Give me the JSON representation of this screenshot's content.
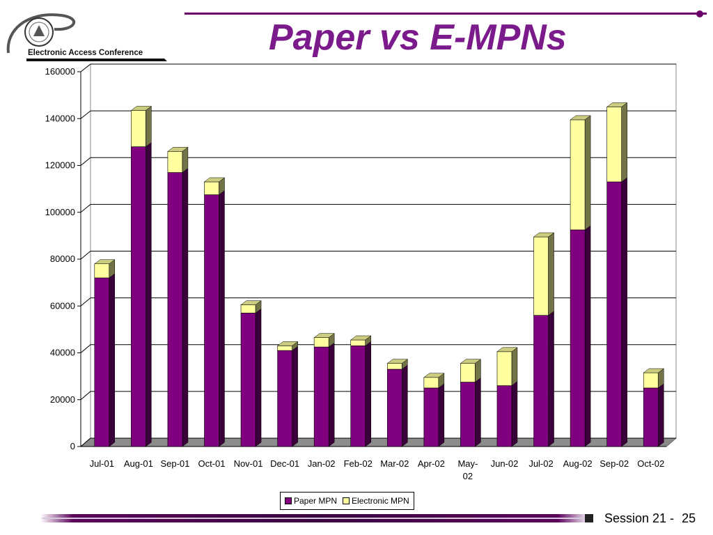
{
  "slide": {
    "title": "Paper vs E-MPNs",
    "logo_text": "Electronic Access Conference",
    "session_label": "Session 21 -",
    "page_number": "25",
    "colors": {
      "title": "#7b1a8a",
      "accent": "#6b006b"
    }
  },
  "chart_data": {
    "type": "bar",
    "stacked": true,
    "three_d": true,
    "categories": [
      "Jul-01",
      "Aug-01",
      "Sep-01",
      "Oct-01",
      "Nov-01",
      "Dec-01",
      "Jan-02",
      "Feb-02",
      "Mar-02",
      "Apr-02",
      "May-\n02",
      "Jun-02",
      "Jul-02",
      "Aug-02",
      "Sep-02",
      "Oct-02"
    ],
    "series": [
      {
        "name": "Paper MPN",
        "color": "#800080",
        "values": [
          72000,
          128000,
          117000,
          107500,
          57000,
          41000,
          42500,
          43000,
          33000,
          25000,
          27500,
          26000,
          56000,
          92500,
          113000,
          25000
        ]
      },
      {
        "name": "Electronic MPN",
        "color": "#ffffa0",
        "values": [
          6000,
          15500,
          9000,
          5500,
          3500,
          2000,
          4000,
          2500,
          2500,
          4500,
          8000,
          14500,
          33500,
          47000,
          32000,
          6500
        ]
      }
    ],
    "ylim": [
      0,
      160000
    ],
    "yticks": [
      0,
      20000,
      40000,
      60000,
      80000,
      100000,
      120000,
      140000,
      160000
    ],
    "grid": true,
    "legend": "bottom"
  }
}
